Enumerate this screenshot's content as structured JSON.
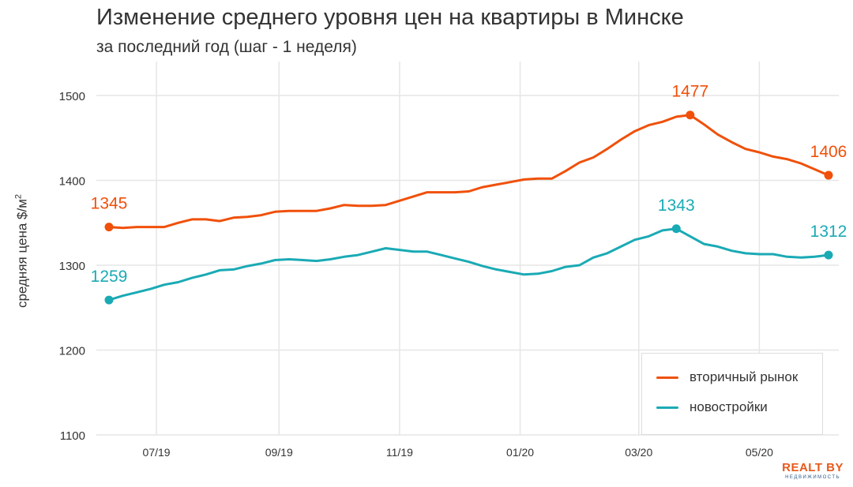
{
  "title": "Изменение среднего уровня цен на квартиры в Минске",
  "subtitle": "за последний год (шаг - 1 неделя)",
  "ylabel": "средняя цена $/м",
  "ylabel_sup": "2",
  "logo": {
    "main": "REALT BY",
    "sub": "НЕДВИЖИМОСТЬ"
  },
  "chart_data": {
    "type": "line",
    "title": "Изменение среднего уровня цен на квартиры в Минске",
    "subtitle": "за последний год (шаг - 1 неделя)",
    "ylabel": "средняя цена $/м2",
    "xlabel": "",
    "ylim": [
      1100,
      1540
    ],
    "yticks": [
      1100,
      1200,
      1300,
      1400,
      1500
    ],
    "x_start": "2019-06-07",
    "x_step_days": 7,
    "xticks": [
      {
        "label": "07/19",
        "date": "2019-07-01"
      },
      {
        "label": "09/19",
        "date": "2019-09-01"
      },
      {
        "label": "11/19",
        "date": "2019-11-01"
      },
      {
        "label": "01/20",
        "date": "2020-01-01"
      },
      {
        "label": "03/20",
        "date": "2020-03-01"
      },
      {
        "label": "05/20",
        "date": "2020-05-01"
      }
    ],
    "grid": true,
    "legend_position": "bottom-right",
    "series": [
      {
        "name": "вторичный рынок",
        "color": "#f0500a",
        "values": [
          1345,
          1344,
          1345,
          1345,
          1345,
          1350,
          1354,
          1354,
          1352,
          1356,
          1357,
          1359,
          1363,
          1364,
          1364,
          1364,
          1367,
          1371,
          1370,
          1370,
          1371,
          1376,
          1381,
          1386,
          1386,
          1386,
          1387,
          1392,
          1395,
          1398,
          1401,
          1402,
          1402,
          1411,
          1421,
          1427,
          1437,
          1448,
          1458,
          1465,
          1469,
          1475,
          1477,
          1466,
          1454,
          1445,
          1437,
          1433,
          1428,
          1425,
          1420,
          1413,
          1406
        ],
        "annotations": [
          {
            "index": 0,
            "label": "1345"
          },
          {
            "index": 42,
            "label": "1477"
          },
          {
            "index": 52,
            "label": "1406"
          }
        ]
      },
      {
        "name": "новостройки",
        "color": "#1aaab5",
        "values": [
          1259,
          1264,
          1268,
          1272,
          1277,
          1280,
          1285,
          1289,
          1294,
          1295,
          1299,
          1302,
          1306,
          1307,
          1306,
          1305,
          1307,
          1310,
          1312,
          1316,
          1320,
          1318,
          1316,
          1316,
          1312,
          1308,
          1304,
          1299,
          1295,
          1292,
          1289,
          1290,
          1293,
          1298,
          1300,
          1309,
          1314,
          1322,
          1330,
          1334,
          1341,
          1343,
          1334,
          1325,
          1322,
          1317,
          1314,
          1313,
          1313,
          1310,
          1309,
          1310,
          1312
        ],
        "annotations": [
          {
            "index": 0,
            "label": "1259"
          },
          {
            "index": 41,
            "label": "1343"
          },
          {
            "index": 52,
            "label": "1312"
          }
        ]
      }
    ]
  }
}
